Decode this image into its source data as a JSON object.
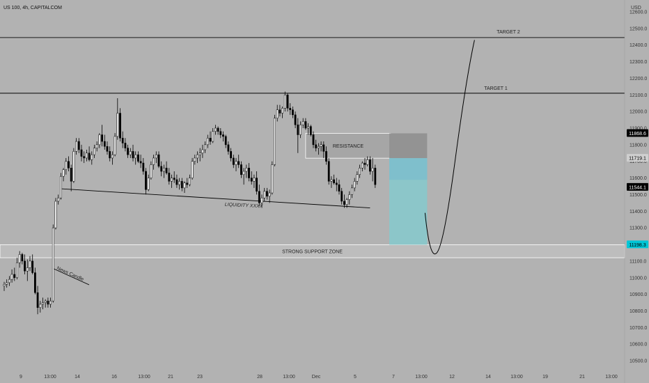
{
  "chart_title": "US 100, 4h, CAPITALCOM",
  "axis_unit": "USD",
  "colors": {
    "background": "#b2b2b2",
    "bull_body": "#ffffff",
    "bear_body": "#000000",
    "wick": "#000000",
    "resistance_zone": "#a6a6a6",
    "support_zone": "#bdbdbd",
    "target_zone": "#8cc6c9",
    "entry_zone": "#7fbfcc",
    "stop_zone": "#939393",
    "price_tag_dark": "#000000",
    "price_tag_gray": "#cfcfcf",
    "price_tag_cyan": "#00c6d6"
  },
  "chart_data": {
    "type": "candlestick",
    "title": "US 100, 4h, CAPITALCOM",
    "ylabel": "USD",
    "ylim": [
      10450,
      12650
    ],
    "y_ticks": [
      "12600.0",
      "12500.0",
      "12400.0",
      "12300.0",
      "12200.0",
      "12100.0",
      "12000.0",
      "11900.0",
      "11800.0",
      "11700.0",
      "11600.0",
      "11500.0",
      "11400.0",
      "11300.0",
      "11200.0",
      "11100.0",
      "11000.0",
      "10900.0",
      "10800.0",
      "10700.0",
      "10600.0",
      "10500.0"
    ],
    "x_ticks": [
      "9",
      "13:00",
      "14",
      "16",
      "13:00",
      "21",
      "23",
      "28",
      "13:00",
      "Dec",
      "5",
      "7",
      "13:00",
      "12",
      "14",
      "13:00",
      "19",
      "21",
      "13:00"
    ],
    "grid": false,
    "candles": [
      [
        10950,
        10975,
        10920,
        10960
      ],
      [
        10960,
        10990,
        10940,
        10970
      ],
      [
        10970,
        11010,
        10950,
        10990
      ],
      [
        10990,
        11050,
        10970,
        11020
      ],
      [
        11020,
        11060,
        10980,
        11000
      ],
      [
        11000,
        11120,
        10990,
        11090
      ],
      [
        11090,
        11160,
        11060,
        11140
      ],
      [
        11140,
        11150,
        11080,
        11100
      ],
      [
        11100,
        11140,
        11020,
        11040
      ],
      [
        11040,
        11110,
        10980,
        11060
      ],
      [
        11060,
        11130,
        11040,
        11100
      ],
      [
        11100,
        11140,
        11020,
        11030
      ],
      [
        11030,
        11060,
        10900,
        10910
      ],
      [
        10910,
        10950,
        10780,
        10820
      ],
      [
        10820,
        10860,
        10790,
        10840
      ],
      [
        10840,
        10880,
        10810,
        10850
      ],
      [
        10850,
        10870,
        10820,
        10860
      ],
      [
        10860,
        10880,
        10820,
        10840
      ],
      [
        10840,
        10880,
        10820,
        10860
      ],
      [
        10860,
        11320,
        10850,
        11300
      ],
      [
        11300,
        11480,
        11290,
        11460
      ],
      [
        11460,
        11500,
        11440,
        11480
      ],
      [
        11480,
        11630,
        11470,
        11610
      ],
      [
        11610,
        11660,
        11580,
        11650
      ],
      [
        11650,
        11720,
        11620,
        11700
      ],
      [
        11700,
        11730,
        11640,
        11660
      ],
      [
        11660,
        11680,
        11520,
        11580
      ],
      [
        11580,
        11780,
        11570,
        11760
      ],
      [
        11760,
        11840,
        11740,
        11820
      ],
      [
        11820,
        11840,
        11750,
        11770
      ],
      [
        11770,
        11800,
        11700,
        11730
      ],
      [
        11730,
        11760,
        11690,
        11720
      ],
      [
        11720,
        11770,
        11700,
        11750
      ],
      [
        11750,
        11790,
        11700,
        11710
      ],
      [
        11710,
        11760,
        11680,
        11740
      ],
      [
        11740,
        11800,
        11720,
        11780
      ],
      [
        11780,
        11820,
        11760,
        11800
      ],
      [
        11800,
        11870,
        11780,
        11860
      ],
      [
        11860,
        11920,
        11790,
        11820
      ],
      [
        11820,
        11860,
        11770,
        11790
      ],
      [
        11790,
        11820,
        11740,
        11760
      ],
      [
        11760,
        11790,
        11700,
        11720
      ],
      [
        11720,
        11760,
        11680,
        11740
      ],
      [
        11740,
        11870,
        11730,
        11850
      ],
      [
        11850,
        12080,
        11830,
        11990
      ],
      [
        11990,
        12020,
        11820,
        11840
      ],
      [
        11840,
        11880,
        11780,
        11810
      ],
      [
        11810,
        11840,
        11760,
        11780
      ],
      [
        11780,
        11800,
        11720,
        11740
      ],
      [
        11740,
        11780,
        11720,
        11760
      ],
      [
        11760,
        11800,
        11700,
        11720
      ],
      [
        11720,
        11760,
        11680,
        11740
      ],
      [
        11740,
        11760,
        11690,
        11700
      ],
      [
        11700,
        11740,
        11660,
        11690
      ],
      [
        11690,
        11720,
        11620,
        11640
      ],
      [
        11640,
        11660,
        11500,
        11530
      ],
      [
        11530,
        11620,
        11520,
        11600
      ],
      [
        11600,
        11700,
        11590,
        11680
      ],
      [
        11680,
        11740,
        11650,
        11720
      ],
      [
        11720,
        11760,
        11690,
        11740
      ],
      [
        11740,
        11760,
        11660,
        11670
      ],
      [
        11670,
        11700,
        11610,
        11640
      ],
      [
        11640,
        11680,
        11600,
        11660
      ],
      [
        11660,
        11700,
        11620,
        11630
      ],
      [
        11630,
        11660,
        11560,
        11580
      ],
      [
        11580,
        11620,
        11540,
        11600
      ],
      [
        11600,
        11640,
        11570,
        11590
      ],
      [
        11590,
        11620,
        11540,
        11560
      ],
      [
        11560,
        11600,
        11530,
        11580
      ],
      [
        11580,
        11600,
        11520,
        11540
      ],
      [
        11540,
        11580,
        11510,
        11570
      ],
      [
        11570,
        11600,
        11540,
        11560
      ],
      [
        11560,
        11620,
        11550,
        11600
      ],
      [
        11600,
        11720,
        11590,
        11700
      ],
      [
        11700,
        11740,
        11680,
        11720
      ],
      [
        11720,
        11760,
        11690,
        11740
      ],
      [
        11740,
        11780,
        11700,
        11750
      ],
      [
        11750,
        11800,
        11720,
        11770
      ],
      [
        11770,
        11820,
        11750,
        11800
      ],
      [
        11800,
        11860,
        11780,
        11840
      ],
      [
        11840,
        11880,
        11800,
        11820
      ],
      [
        11820,
        11900,
        11810,
        11880
      ],
      [
        11880,
        11920,
        11860,
        11900
      ],
      [
        11900,
        11910,
        11860,
        11880
      ],
      [
        11880,
        11900,
        11840,
        11860
      ],
      [
        11860,
        11880,
        11820,
        11850
      ],
      [
        11850,
        11860,
        11780,
        11800
      ],
      [
        11800,
        11820,
        11740,
        11760
      ],
      [
        11760,
        11780,
        11700,
        11720
      ],
      [
        11720,
        11740,
        11660,
        11680
      ],
      [
        11680,
        11720,
        11640,
        11700
      ],
      [
        11700,
        11740,
        11660,
        11680
      ],
      [
        11680,
        11700,
        11600,
        11620
      ],
      [
        11620,
        11660,
        11560,
        11640
      ],
      [
        11640,
        11680,
        11600,
        11660
      ],
      [
        11660,
        11690,
        11580,
        11600
      ],
      [
        11600,
        11640,
        11560,
        11580
      ],
      [
        11580,
        11620,
        11540,
        11600
      ],
      [
        11600,
        11640,
        11500,
        11520
      ],
      [
        11520,
        11560,
        11430,
        11450
      ],
      [
        11450,
        11500,
        11420,
        11480
      ],
      [
        11480,
        11540,
        11460,
        11520
      ],
      [
        11520,
        11540,
        11470,
        11490
      ],
      [
        11490,
        11530,
        11450,
        11510
      ],
      [
        11510,
        11700,
        11500,
        11680
      ],
      [
        11680,
        11980,
        11670,
        11960
      ],
      [
        11960,
        12040,
        11940,
        12010
      ],
      [
        12010,
        12040,
        11970,
        11990
      ],
      [
        11990,
        12030,
        11960,
        12020
      ],
      [
        12020,
        12120,
        12000,
        12100
      ],
      [
        12100,
        12110,
        12000,
        12020
      ],
      [
        12020,
        12050,
        11980,
        12010
      ],
      [
        12010,
        12030,
        11960,
        11980
      ],
      [
        11980,
        12000,
        11900,
        11920
      ],
      [
        11920,
        11960,
        11750,
        11860
      ],
      [
        11860,
        11940,
        11840,
        11920
      ],
      [
        11920,
        11960,
        11900,
        11940
      ],
      [
        11940,
        11960,
        11890,
        11900
      ],
      [
        11900,
        11930,
        11860,
        11910
      ],
      [
        11910,
        11920,
        11850,
        11860
      ],
      [
        11860,
        11880,
        11780,
        11800
      ],
      [
        11800,
        11830,
        11760,
        11780
      ],
      [
        11780,
        11810,
        11740,
        11790
      ],
      [
        11790,
        11820,
        11760,
        11800
      ],
      [
        11800,
        11820,
        11720,
        11760
      ],
      [
        11760,
        11790,
        11680,
        11700
      ],
      [
        11700,
        11720,
        11560,
        11580
      ],
      [
        11580,
        11610,
        11540,
        11590
      ],
      [
        11590,
        11620,
        11560,
        11570
      ],
      [
        11570,
        11600,
        11520,
        11560
      ],
      [
        11560,
        11590,
        11500,
        11520
      ],
      [
        11520,
        11540,
        11440,
        11460
      ],
      [
        11460,
        11500,
        11420,
        11440
      ],
      [
        11440,
        11480,
        11420,
        11470
      ],
      [
        11470,
        11520,
        11440,
        11500
      ],
      [
        11500,
        11560,
        11480,
        11540
      ],
      [
        11540,
        11600,
        11520,
        11580
      ],
      [
        11580,
        11640,
        11560,
        11620
      ],
      [
        11620,
        11680,
        11600,
        11660
      ],
      [
        11660,
        11700,
        11640,
        11690
      ],
      [
        11690,
        11720,
        11650,
        11680
      ],
      [
        11680,
        11730,
        11670,
        11710
      ],
      [
        11710,
        11730,
        11620,
        11640
      ],
      [
        11640,
        11720,
        11580,
        11660
      ],
      [
        11660,
        11680,
        11540,
        11560
      ]
    ],
    "lines": [
      {
        "name": "target-2-line",
        "price": 12445
      },
      {
        "name": "target-1-line",
        "price": 12110
      },
      {
        "name": "liquidity-line",
        "from_candle": 22,
        "from_price": 11535,
        "to_candle": 142,
        "to_price": 11420
      }
    ],
    "zones": [
      {
        "name": "resistance-zone",
        "label": "RESISTANCE",
        "top": 11868.6,
        "bottom": 11719.1,
        "from_candle": 117,
        "to_candle": 150
      },
      {
        "name": "support-zone",
        "label": "STRONG SUPPORT ZONE",
        "top": 11198.3,
        "bottom": 11120,
        "from_candle": 0,
        "to_candle": 210
      }
    ],
    "annotations": {
      "target_1": "TARGET 1",
      "target_2": "TARGET 2",
      "liquidity": "LIQUIDITY XXXX",
      "news_candle": "News Candle"
    },
    "price_tags": [
      {
        "value": "11868.6",
        "price": 11868.6,
        "style": "dark"
      },
      {
        "value": "11719.1",
        "price": 11719.1,
        "style": "gray"
      },
      {
        "value": "11544.1",
        "price": 11544.1,
        "style": "dark"
      },
      {
        "value": "11198.3",
        "price": 11198.3,
        "style": "cyan"
      }
    ],
    "position": {
      "entry": 11719.1,
      "stop": 11868.6,
      "target": 11198.3,
      "from_candle": 150,
      "to_candle": 162
    }
  }
}
